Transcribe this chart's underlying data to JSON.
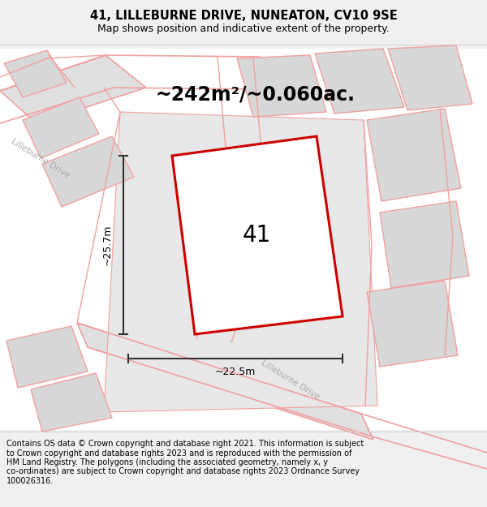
{
  "title_line1": "41, LILLEBURNE DRIVE, NUNEATON, CV10 9SE",
  "title_line2": "Map shows position and indicative extent of the property.",
  "area_text": "~242m²/~0.060ac.",
  "label_41": "41",
  "dim_vertical": "~25.7m",
  "dim_horizontal": "~22.5m",
  "road_label_upper": "Lilleburne Drive",
  "road_label_lower": "Lilleburne Drive",
  "copyright_lines": [
    "Contains OS data © Crown copyright and database right 2021. This information is subject",
    "to Crown copyright and database rights 2023 and is reproduced with the permission of",
    "HM Land Registry. The polygons (including the associated geometry, namely x, y",
    "co-ordinates) are subject to Crown copyright and database rights 2023 Ordnance Survey",
    "100026316."
  ],
  "fig_bg": "#f0f0f0",
  "map_bg": "#ffffff",
  "building_fill": "#d8d8d8",
  "building_stroke": "#f0a0a0",
  "road_fill": "#e0e0e0",
  "road_stroke": "#f0a0a0",
  "property_fill": "#ffffff",
  "property_stroke": "#cc0000",
  "dim_line_color": "#333333",
  "title_fontsize": 10.5,
  "subtitle_fontsize": 9,
  "area_fontsize": 17,
  "label_fontsize": 20,
  "dim_fontsize": 9,
  "road_label_fontsize": 7.5,
  "copyright_fontsize": 7.0
}
